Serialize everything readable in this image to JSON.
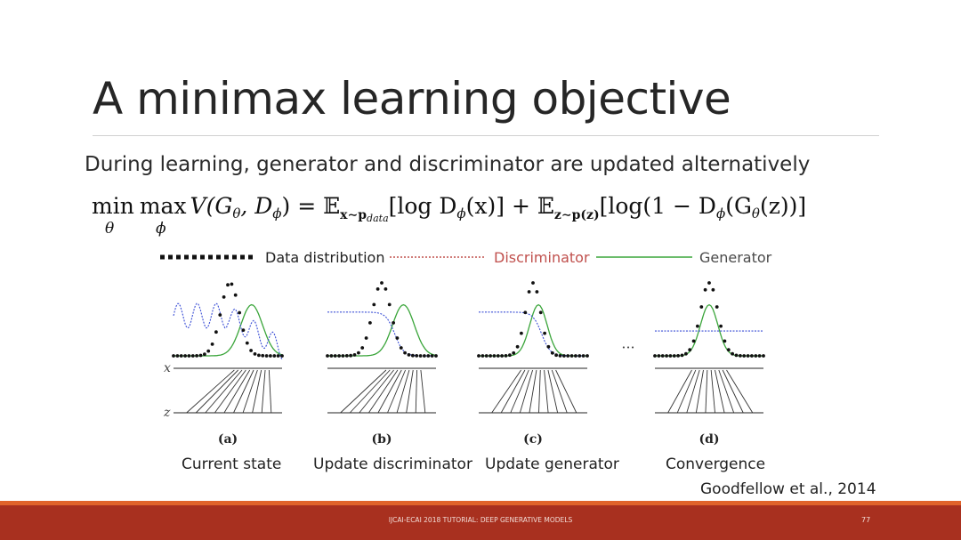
{
  "slide": {
    "title": "A minimax learning objective",
    "subtitle": "During learning, generator and discriminator are updated alternatively",
    "equation": {
      "min": "min",
      "min_sub": "θ",
      "max": "max",
      "max_sub": "ϕ",
      "lhs": "V(G",
      "lhs_theta": "θ",
      "lhs_mid": ", D",
      "lhs_phi": "ϕ",
      "lhs_end": ") = 𝔼",
      "e1_sub": "x∼p",
      "e1_sub_data": "data",
      "term1": "[log D",
      "term1_phi": "ϕ",
      "term1_end": "(x)] + 𝔼",
      "e2_sub": "z∼p(z)",
      "term2": "[log(1 − D",
      "term2_phi": "ϕ",
      "term2_mid": "(G",
      "term2_theta": "θ",
      "term2_end": "(z))]"
    },
    "legend": {
      "data_label": "Data distribution",
      "discriminator_label": "Discriminator",
      "generator_label": "Generator"
    },
    "figure": {
      "axis_x": "x",
      "axis_z": "z",
      "ellipsis": "···",
      "panels": [
        {
          "letter": "(a)",
          "caption": "Current state"
        },
        {
          "letter": "(b)",
          "caption": "Update discriminator"
        },
        {
          "letter": "(c)",
          "caption": "Update generator"
        },
        {
          "letter": "(d)",
          "caption": "Convergence"
        }
      ]
    },
    "citation": "Goodfellow et al., 2014",
    "footer": "IJCAI-ECAI 2018 TUTORIAL: DEEP GENERATIVE MODELS",
    "page_number": "77"
  },
  "colors": {
    "discriminator": "#c0504d",
    "discriminator_curve": "#3b4fd6",
    "generator": "#3aa53a",
    "footer_bar": "#a8301f",
    "footer_accent": "#e0632a"
  }
}
